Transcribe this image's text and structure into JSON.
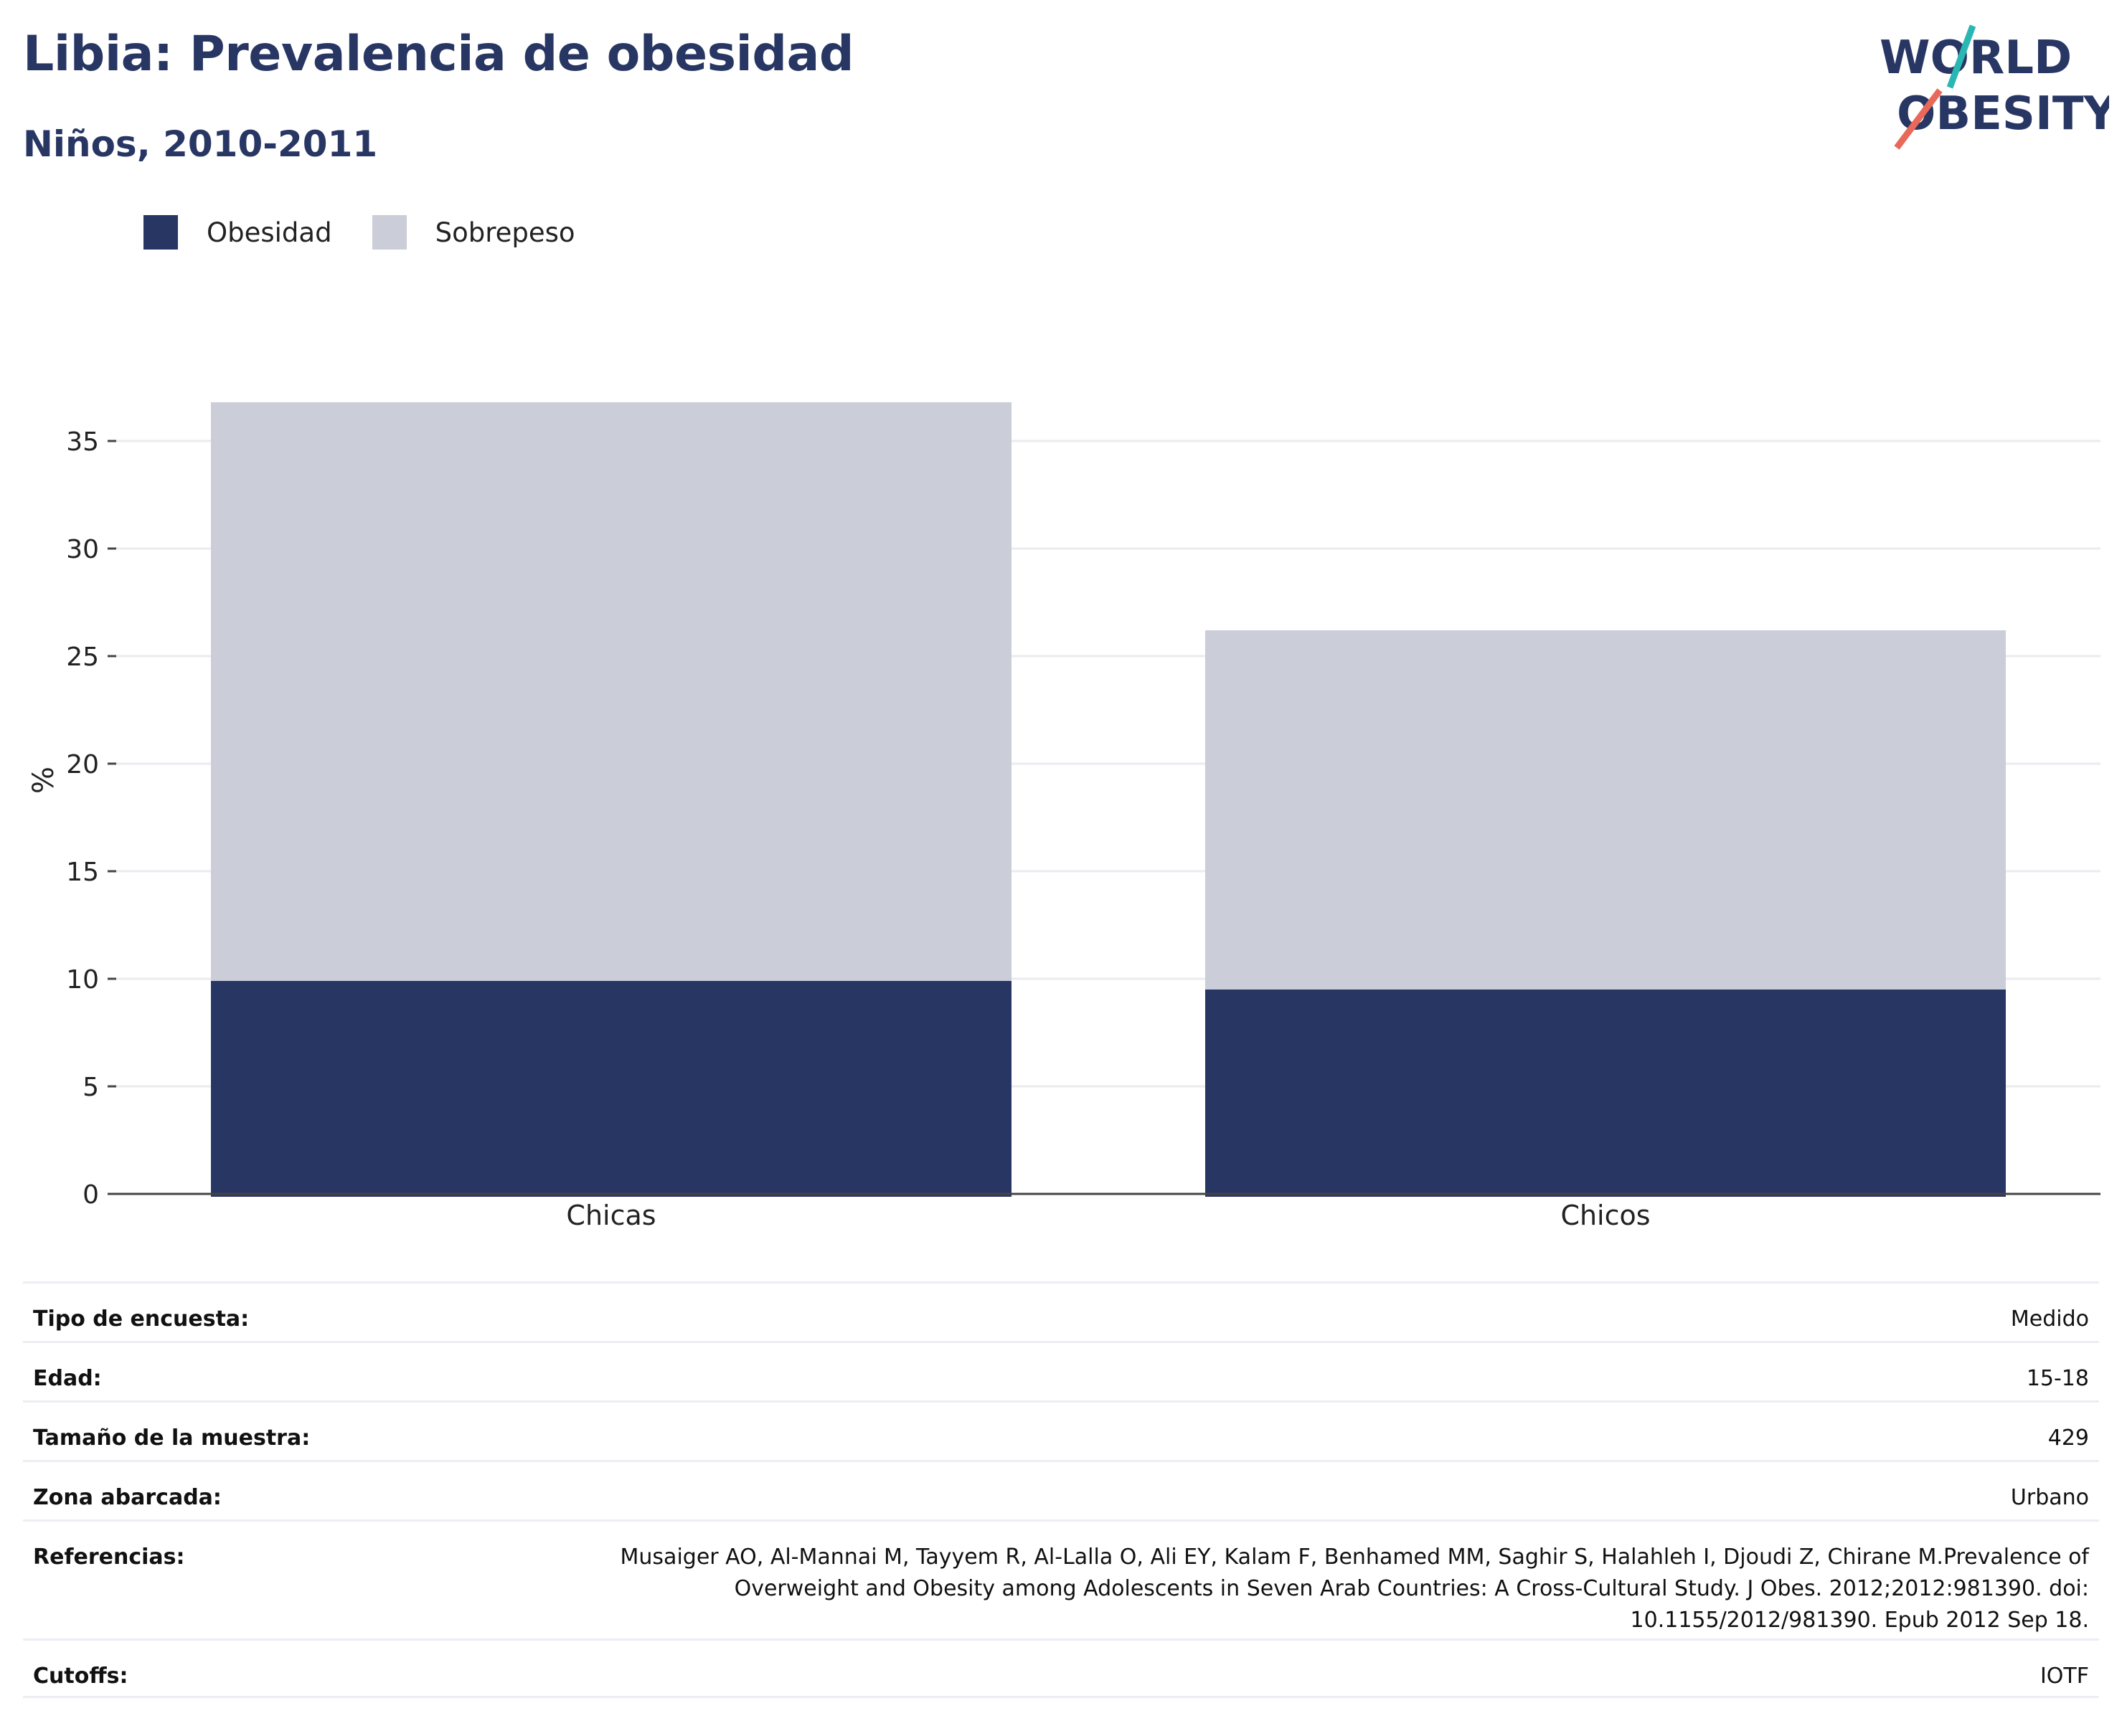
{
  "header": {
    "title": "Libia: Prevalencia de obesidad",
    "subtitle": "Niños, 2010-2011"
  },
  "logo": {
    "line1": "WORLD",
    "line2": "OBESITY"
  },
  "colors": {
    "obesidad": "#283664",
    "sobrepeso": "#cbcdd8",
    "accent_teal": "#2ab7b3",
    "accent_coral": "#e8685a",
    "brand": "#283664"
  },
  "chart_data": {
    "type": "bar",
    "stacked": true,
    "categories": [
      "Chicas",
      "Chicos"
    ],
    "series": [
      {
        "name": "Obesidad",
        "values": [
          9.9,
          9.5
        ]
      },
      {
        "name": "Sobrepeso",
        "values": [
          26.9,
          16.7
        ]
      }
    ],
    "ylabel": "%",
    "ylim": [
      0,
      37
    ],
    "yticks": [
      0,
      5,
      10,
      15,
      20,
      25,
      30,
      35
    ],
    "grid": true,
    "legend_position": "top-left"
  },
  "info": [
    {
      "label": "Tipo de encuesta:",
      "value": "Medido"
    },
    {
      "label": "Edad:",
      "value": "15-18"
    },
    {
      "label": "Tamaño de la muestra:",
      "value": "429"
    },
    {
      "label": "Zona abarcada:",
      "value": "Urbano"
    },
    {
      "label": "Referencias:",
      "value": "Musaiger AO, Al-Mannai M, Tayyem R, Al-Lalla O, Ali EY, Kalam F, Benhamed MM, Saghir S, Halahleh I, Djoudi Z, Chirane M.Prevalence of Overweight and Obesity among Adolescents in Seven Arab Countries: A Cross-Cultural Study. J Obes. 2012;2012:981390. doi: 10.1155/2012/981390. Epub 2012 Sep 18."
    },
    {
      "label": "Cutoffs:",
      "value": "IOTF"
    }
  ]
}
